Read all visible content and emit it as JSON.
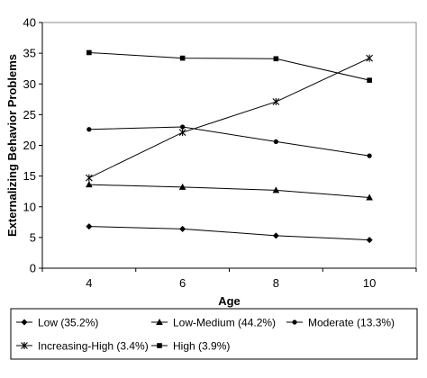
{
  "chart_data": {
    "type": "line",
    "title": "",
    "xlabel": "Age",
    "ylabel": "Externalizing Behavior Problems",
    "x": [
      4,
      6,
      8,
      10
    ],
    "xticks": [
      "4",
      "6",
      "8",
      "10"
    ],
    "ylim": [
      0,
      40
    ],
    "yticks": [
      "0",
      "5",
      "10",
      "15",
      "20",
      "25",
      "30",
      "35",
      "40"
    ],
    "grid": false,
    "legend_position": "bottom",
    "series": [
      {
        "name": "Low (35.2%)",
        "marker": "diamond",
        "values": [
          6.8,
          6.4,
          5.3,
          4.6
        ]
      },
      {
        "name": "Low-Medium (44.2%)",
        "marker": "triangle",
        "values": [
          13.6,
          13.2,
          12.7,
          11.5
        ]
      },
      {
        "name": "Moderate (13.3%)",
        "marker": "circle",
        "values": [
          22.6,
          23.0,
          20.6,
          18.3
        ]
      },
      {
        "name": "Increasing-High (3.4%)",
        "marker": "star",
        "values": [
          14.7,
          22.1,
          27.1,
          34.2
        ]
      },
      {
        "name": "High (3.9%)",
        "marker": "square",
        "values": [
          35.1,
          34.2,
          34.1,
          30.6
        ]
      }
    ]
  }
}
